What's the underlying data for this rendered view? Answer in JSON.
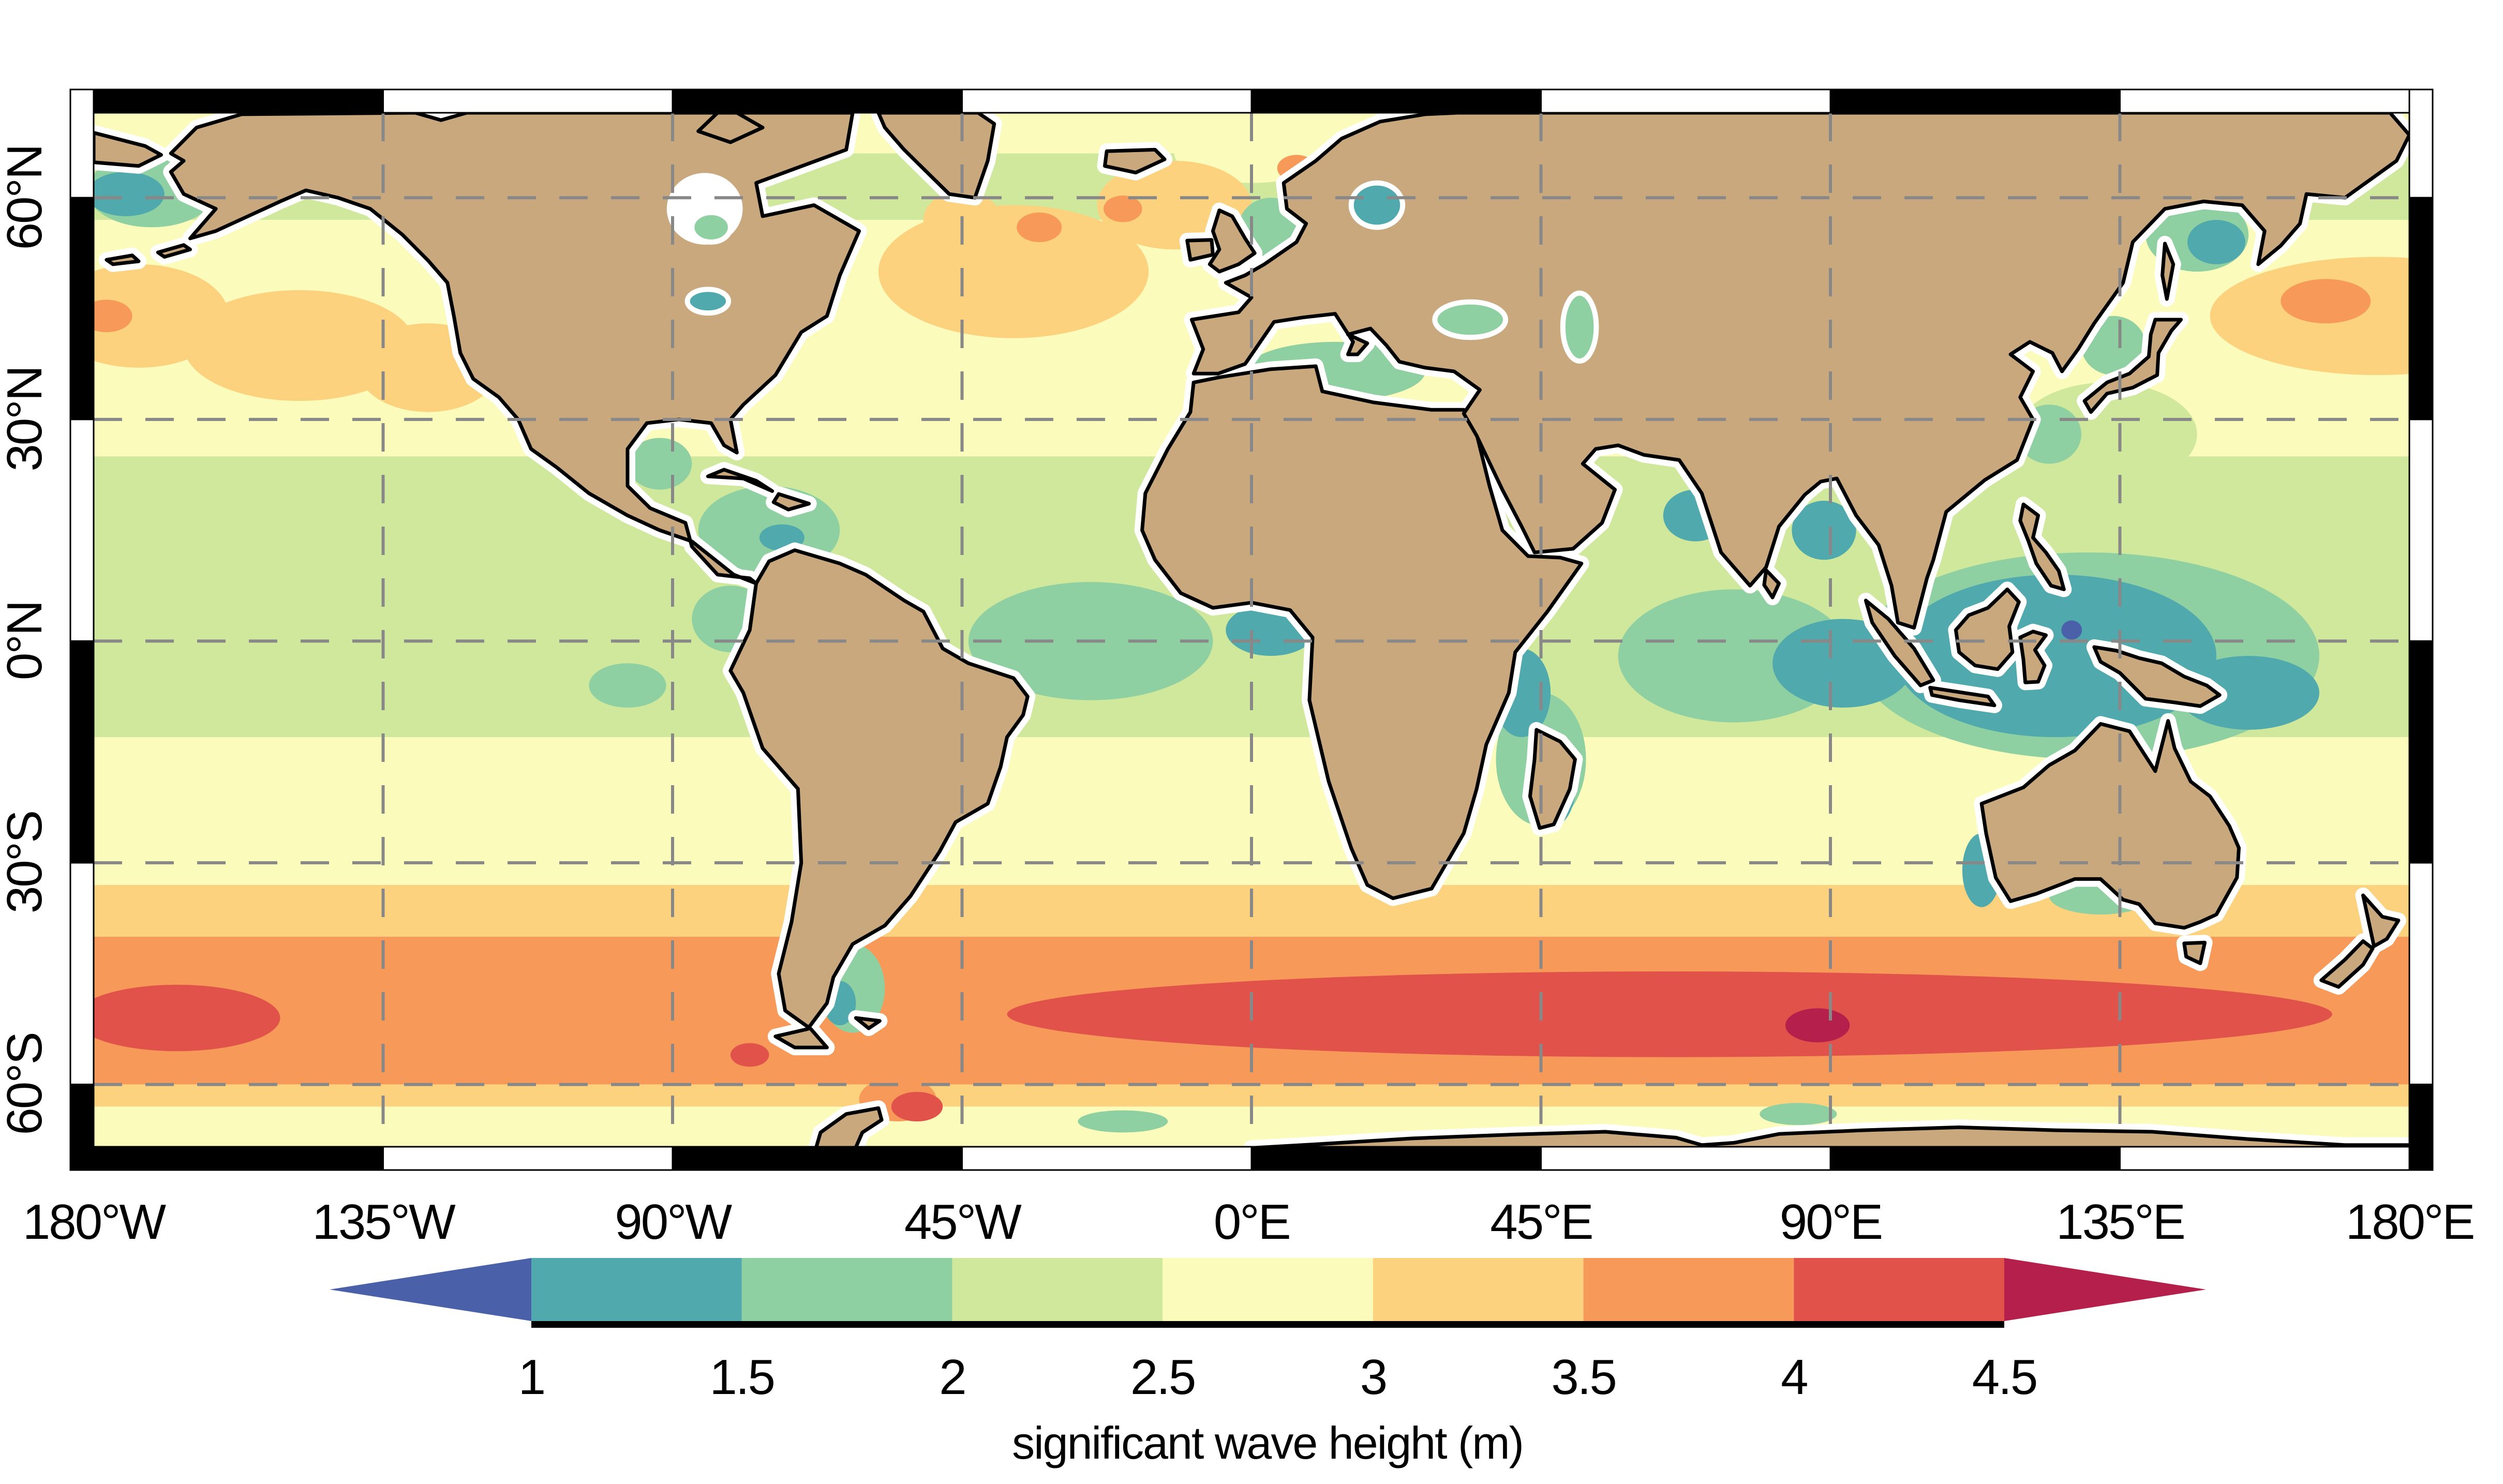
{
  "page": {
    "background": "#ffffff"
  },
  "axes": {
    "lon_labels": [
      "180°W",
      "135°W",
      "90°W",
      "45°W",
      "0°E",
      "45°E",
      "90°E",
      "135°E",
      "180°E"
    ],
    "lat_labels": [
      "60°N",
      "30°N",
      "0°N",
      "30°S",
      "60°S"
    ],
    "grid_color": "#888888",
    "grid_style": "dashed",
    "frame_colors": [
      "#000000",
      "#ffffff"
    ]
  },
  "chart_data": {
    "type": "heatmap",
    "title": "",
    "colorbar": {
      "label": "significant wave height (m)",
      "ticks": [
        "1",
        "1.5",
        "2",
        "2.5",
        "3",
        "3.5",
        "4",
        "4.5"
      ],
      "arrow_low": "<1",
      "arrow_high": ">4.5",
      "orientation": "horizontal"
    },
    "levels": [
      {
        "range": "<1",
        "color": "#4a61a9"
      },
      {
        "range": "1-1.5",
        "color": "#4fa9ad"
      },
      {
        "range": "1.5-2",
        "color": "#8fd0a2"
      },
      {
        "range": "2-2.5",
        "color": "#cfe89c"
      },
      {
        "range": "2.5-3",
        "color": "#fbfbbb"
      },
      {
        "range": "3-3.5",
        "color": "#fcd27f"
      },
      {
        "range": "3.5-4",
        "color": "#f79a59"
      },
      {
        "range": "4-4.5",
        "color": "#e0524a"
      },
      {
        "range": ">4.5",
        "color": "#b41f4b"
      }
    ],
    "land_color": "#c9a87e",
    "coast_color": "#000000",
    "lon_range": [
      -180,
      180
    ],
    "lat_range": [
      -68.5,
      71.5
    ],
    "lon_gridlines": [
      -135,
      -90,
      -45,
      0,
      45,
      90,
      135
    ],
    "lat_gridlines": [
      60,
      30,
      0,
      -30,
      -60
    ],
    "zonal_bands": [
      {
        "from": 71.5,
        "to": 66,
        "level": "2.5-3"
      },
      {
        "from": 66,
        "to": 57,
        "level": "2-2.5"
      },
      {
        "from": 57,
        "to": 25,
        "level": "2.5-3"
      },
      {
        "from": 25,
        "to": -13,
        "level": "2-2.5"
      },
      {
        "from": -13,
        "to": -33,
        "level": "2.5-3"
      },
      {
        "from": -33,
        "to": -40,
        "level": "3-3.5"
      },
      {
        "from": -40,
        "to": -60,
        "level": "3.5-4"
      },
      {
        "from": -60,
        "to": -63,
        "level": "3-3.5"
      },
      {
        "from": -63,
        "to": -68.5,
        "level": "2.5-3"
      }
    ],
    "features": [
      {
        "name": "norwegian-sea",
        "lon": 0,
        "lat": 66,
        "rx": 12,
        "ry": 4,
        "level": "2.5-3"
      },
      {
        "name": "barents-sea",
        "lon": 38,
        "lat": 70.5,
        "rx": 14,
        "ry": 3,
        "level": "2.5-3"
      },
      {
        "name": "np-storm-track-west",
        "lon": 175,
        "lat": 44,
        "rx": 26,
        "ry": 8,
        "level": "3-3.5"
      },
      {
        "name": "np-storm-track-wrap",
        "lon": -173,
        "lat": 44,
        "rx": 14,
        "ry": 7,
        "level": "3-3.5"
      },
      {
        "name": "np-storm-track-mid",
        "lon": -148,
        "lat": 40,
        "rx": 18,
        "ry": 7.5,
        "level": "3-3.5"
      },
      {
        "name": "np-storm-track-east",
        "lon": -128,
        "lat": 37,
        "rx": 11,
        "ry": 6,
        "level": "3-3.5"
      },
      {
        "name": "na-storm-track",
        "lon": -37,
        "lat": 50,
        "rx": 21,
        "ry": 9,
        "level": "3-3.5"
      },
      {
        "name": "na-storm-track-ne",
        "lon": -12,
        "lat": 59,
        "rx": 12,
        "ry": 6,
        "level": "3-3.5"
      },
      {
        "name": "labrador-patch",
        "lon": -45,
        "lat": 57,
        "rx": 6,
        "ry": 4,
        "level": "3-3.5"
      },
      {
        "name": "np-orange-patch-1",
        "lon": 167,
        "lat": 46,
        "rx": 7,
        "ry": 3,
        "level": "3.5-4"
      },
      {
        "name": "np-orange-patch-2",
        "lon": -178,
        "lat": 44,
        "rx": 4,
        "ry": 2.2,
        "level": "3.5-4"
      },
      {
        "name": "na-orange-patch-1",
        "lon": -33,
        "lat": 56,
        "rx": 3.5,
        "ry": 2,
        "level": "3.5-4"
      },
      {
        "name": "na-orange-patch-2",
        "lon": -20,
        "lat": 58.5,
        "rx": 3,
        "ry": 1.8,
        "level": "3.5-4"
      },
      {
        "name": "norway-orange-patch",
        "lon": 7,
        "lat": 64,
        "rx": 3,
        "ry": 1.8,
        "level": "3.5-4"
      },
      {
        "name": "philippine-sea",
        "lon": 133,
        "lat": 28,
        "rx": 14,
        "ry": 7,
        "level": "2-2.5"
      },
      {
        "name": "eq-atlantic-green",
        "lon": -25,
        "lat": 0,
        "rx": 19,
        "ry": 8,
        "level": "1.5-2"
      },
      {
        "name": "caribbean-green",
        "lon": -75,
        "lat": 15,
        "rx": 11,
        "ry": 6,
        "level": "1.5-2"
      },
      {
        "name": "gulf-mexico-green",
        "lon": -92,
        "lat": 24,
        "rx": 5,
        "ry": 3.5,
        "level": "1.5-2"
      },
      {
        "name": "panama-green",
        "lon": -81,
        "lat": 3,
        "rx": 6,
        "ry": 4.5,
        "level": "1.5-2"
      },
      {
        "name": "galapagos-green",
        "lon": -97,
        "lat": -6,
        "rx": 6,
        "ry": 3,
        "level": "1.5-2"
      },
      {
        "name": "eq-indian-green",
        "lon": 75,
        "lat": -2,
        "rx": 18,
        "ry": 9,
        "level": "1.5-2"
      },
      {
        "name": "w-pacific-green",
        "lon": 130,
        "lat": -2,
        "rx": 36,
        "ry": 14,
        "level": "1.5-2"
      },
      {
        "name": "okhotsk-green",
        "lon": 147,
        "lat": 55,
        "rx": 8,
        "ry": 5,
        "level": "1.5-2"
      },
      {
        "name": "sea-japan-green",
        "lon": 134,
        "lat": 40,
        "rx": 5,
        "ry": 4,
        "level": "1.5-2"
      },
      {
        "name": "east-china-green",
        "lon": 124,
        "lat": 28,
        "rx": 5,
        "ry": 4,
        "level": "1.5-2"
      },
      {
        "name": "mediterranean-green",
        "lon": 13,
        "lat": 36.5,
        "rx": 14,
        "ry": 4,
        "level": "1.5-2"
      },
      {
        "name": "north-sea-green",
        "lon": 3,
        "lat": 56,
        "rx": 5,
        "ry": 4,
        "level": "1.5-2"
      },
      {
        "name": "patagonia-shelf-green",
        "lon": -62,
        "lat": -47,
        "rx": 5,
        "ry": 6,
        "level": "1.5-2"
      },
      {
        "name": "aus-bight-green",
        "lon": 132,
        "lat": -34.5,
        "rx": 8,
        "ry": 2.5,
        "level": "1.5-2"
      },
      {
        "name": "madagascar-green",
        "lon": 45,
        "lat": -16,
        "rx": 7,
        "ry": 9,
        "level": "1.5-2"
      },
      {
        "name": "bering-green",
        "lon": -171,
        "lat": 61,
        "rx": 10,
        "ry": 5,
        "level": "1.5-2"
      },
      {
        "name": "antarctic-green-1",
        "lon": 85,
        "lat": -64,
        "rx": 6,
        "ry": 1.5,
        "level": "1.5-2"
      },
      {
        "name": "antarctic-green-2",
        "lon": -20,
        "lat": -65,
        "rx": 7,
        "ry": 1.5,
        "level": "1.5-2"
      },
      {
        "name": "indonesia-teal",
        "lon": 125,
        "lat": -2,
        "rx": 25,
        "ry": 11,
        "level": "1-1.5"
      },
      {
        "name": "solomon-teal",
        "lon": 155,
        "lat": -7,
        "rx": 11,
        "ry": 5,
        "level": "1-1.5"
      },
      {
        "name": "e-indian-teal",
        "lon": 92,
        "lat": -3,
        "rx": 11,
        "ry": 6,
        "level": "1-1.5"
      },
      {
        "name": "bengal-teal",
        "lon": 89,
        "lat": 15,
        "rx": 5,
        "ry": 4,
        "level": "1-1.5"
      },
      {
        "name": "arabian-teal",
        "lon": 69,
        "lat": 17,
        "rx": 5,
        "ry": 3.5,
        "level": "1-1.5"
      },
      {
        "name": "guinea-teal",
        "lon": 3,
        "lat": 1.5,
        "rx": 7,
        "ry": 3.5,
        "level": "1-1.5"
      },
      {
        "name": "eafrica-teal",
        "lon": 42,
        "lat": -7,
        "rx": 4.5,
        "ry": 6,
        "level": "1-1.5"
      },
      {
        "name": "madagascar-teal",
        "lon": 47,
        "lat": -19,
        "rx": 3.5,
        "ry": 6,
        "level": "1-1.5"
      },
      {
        "name": "bering-teal",
        "lon": -175,
        "lat": 60.5,
        "rx": 6,
        "ry": 3,
        "level": "1-1.5"
      },
      {
        "name": "okhotsk-teal",
        "lon": 150,
        "lat": 54,
        "rx": 4.5,
        "ry": 3,
        "level": "1-1.5"
      },
      {
        "name": "caribbean-teal",
        "lon": -73,
        "lat": 14,
        "rx": 3.5,
        "ry": 1.8,
        "level": "1-1.5"
      },
      {
        "name": "sw-australia-teal",
        "lon": 113.5,
        "lat": -31,
        "rx": 3,
        "ry": 5,
        "level": "1-1.5"
      },
      {
        "name": "patagonia-teal",
        "lon": -64,
        "lat": -49,
        "rx": 2.5,
        "ry": 3,
        "level": "1-1.5"
      },
      {
        "name": "banda-indigo",
        "lon": 118,
        "lat": -0.5,
        "rx": 2.2,
        "ry": 1.6,
        "level": "<1"
      },
      {
        "name": "halmahera-indigo",
        "lon": 127.5,
        "lat": 1.5,
        "rx": 1.6,
        "ry": 1.3,
        "level": "<1"
      },
      {
        "name": "drake-orange",
        "lon": -55,
        "lat": -62,
        "rx": 6,
        "ry": 3,
        "level": "3.5-4"
      },
      {
        "name": "so-red-main",
        "lon": 65,
        "lat": -50.5,
        "rx": 103,
        "ry": 5.8,
        "level": "4-4.5"
      },
      {
        "name": "so-red-wpacific",
        "lon": -167,
        "lat": -51,
        "rx": 16,
        "ry": 4.5,
        "level": "4-4.5"
      },
      {
        "name": "so-red-sepacific",
        "lon": -78,
        "lat": -56,
        "rx": 3,
        "ry": 1.6,
        "level": "4-4.5"
      },
      {
        "name": "scotia-red",
        "lon": -52,
        "lat": -63,
        "rx": 4,
        "ry": 2,
        "level": "4-4.5"
      },
      {
        "name": "so-crimson-maximum",
        "lon": 88,
        "lat": -52,
        "rx": 5,
        "ry": 2.3,
        "level": ">4.5"
      }
    ],
    "maximum": {
      "lon": 88,
      "lat": -52,
      "value": ">4.5"
    }
  }
}
